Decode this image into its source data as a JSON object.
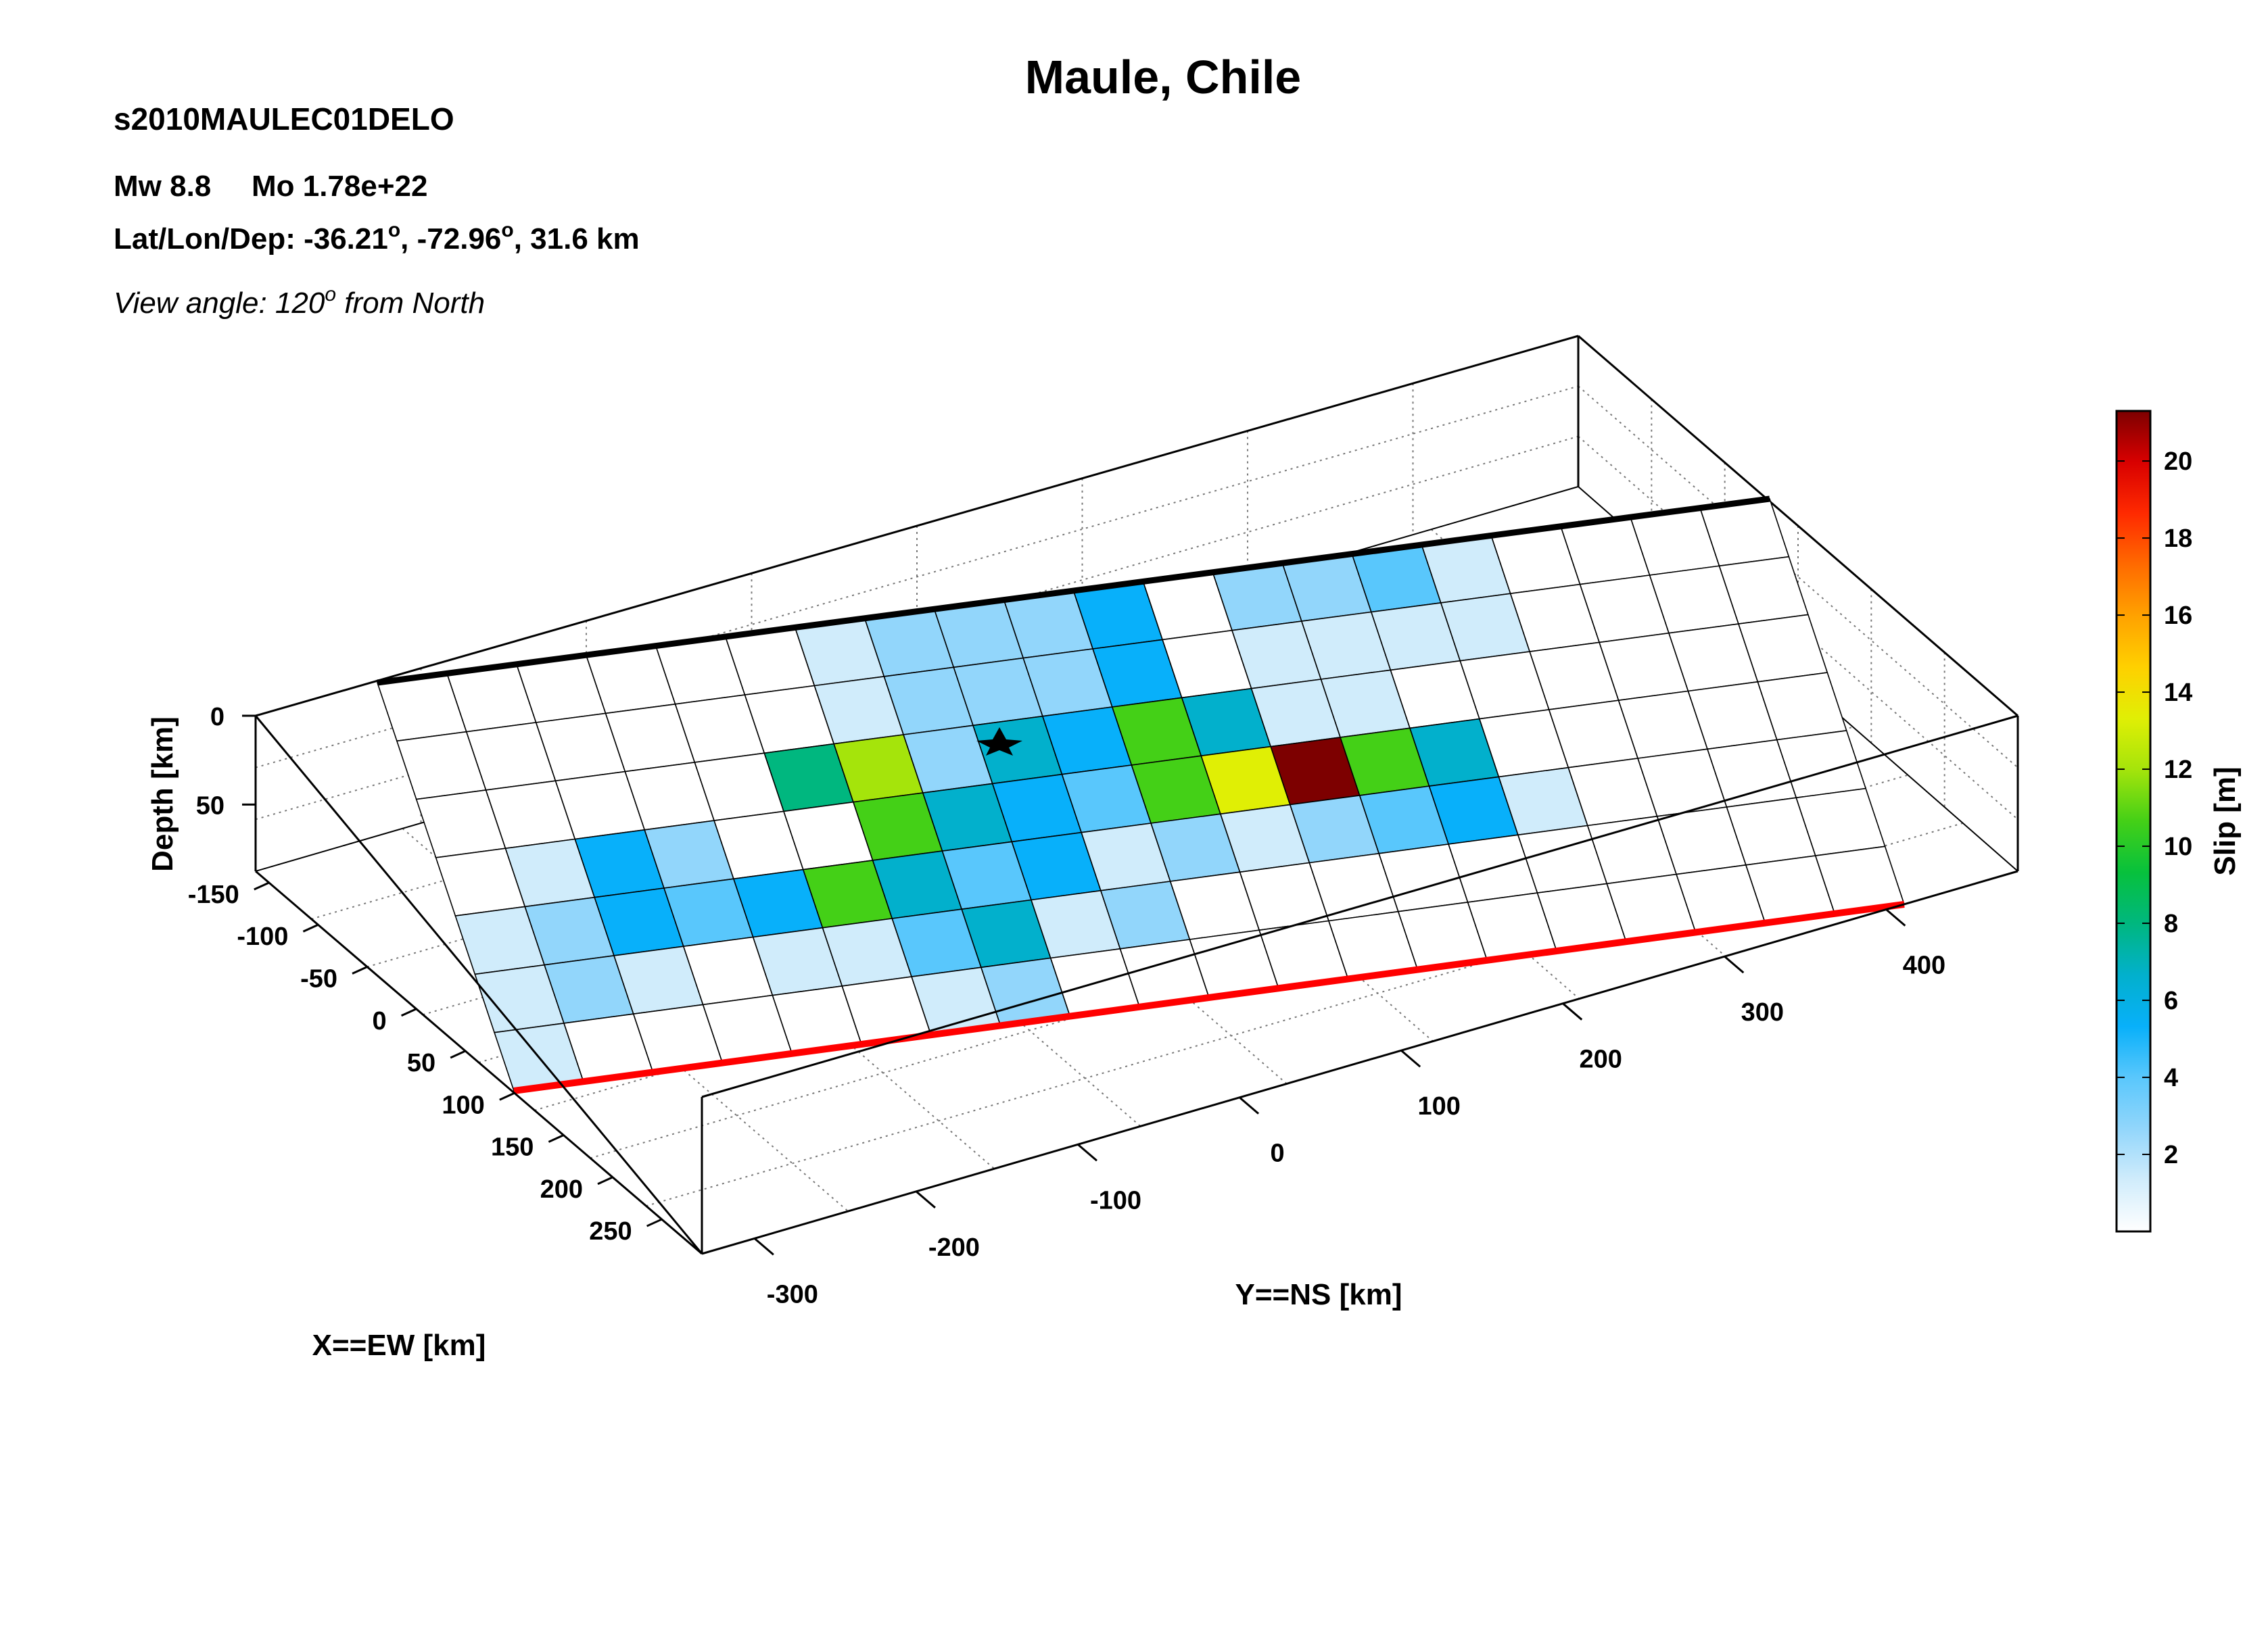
{
  "header": {
    "title": "Maule, Chile",
    "event_id": "s2010MAULEC01DELO",
    "mw_label": "Mw 8.8",
    "mo_label": "Mo 1.78e+22",
    "location_label": "Lat/Lon/Dep: -36.21",
    "location_lon": ", -72.96",
    "location_dep": ", 31.6 km",
    "degree_mark": "o",
    "view_prefix": "View angle: 120",
    "view_suffix": " from North"
  },
  "chart_data": {
    "type": "heatmap",
    "title": "Maule, Chile",
    "xlabel": "X==EW [km]",
    "ylabel": "Y==NS [km]",
    "zlabel": "Depth [km]",
    "colorbar_label": "Slip [m]",
    "colorbar_ticks": [
      "2",
      "4",
      "6",
      "8",
      "10",
      "12",
      "14",
      "16",
      "18",
      "20"
    ],
    "colorbar_range": [
      0,
      21.3
    ],
    "x_ticks": [
      "-150",
      "-100",
      "-50",
      "0",
      "50",
      "100",
      "150",
      "200",
      "250"
    ],
    "y_ticks": [
      "-300",
      "-200",
      "-100",
      "0",
      "100",
      "200",
      "300",
      "400"
    ],
    "z_ticks": [
      "0",
      "50"
    ],
    "grid": "dotted",
    "view_angle_deg": 120,
    "hypocenter": {
      "x_km": 0,
      "y_km": -150,
      "depth_km": 31.6
    },
    "fault_rows": 7,
    "fault_cols": 20,
    "slip_m": [
      [
        0.0,
        0.0,
        0.0,
        0.0,
        0.0,
        0.0,
        1.0,
        3.0,
        2.5,
        2.2,
        5.0,
        0.0,
        2.2,
        3.0,
        4.2,
        1.8,
        0.0,
        0.0,
        0.0,
        0.0
      ],
      [
        0.0,
        0.0,
        0.0,
        0.0,
        0.0,
        0.0,
        1.0,
        2.8,
        2.5,
        2.0,
        5.0,
        0.0,
        1.5,
        1.0,
        1.5,
        1.8,
        0.0,
        0.0,
        0.0,
        0.0
      ],
      [
        0.0,
        0.0,
        0.0,
        0.0,
        0.0,
        8.0,
        12.5,
        3.0,
        7.0,
        5.0,
        10.5,
        6.5,
        1.0,
        0.5,
        0.0,
        0.0,
        0.0,
        0.0,
        0.0,
        0.0
      ],
      [
        0.0,
        1.5,
        5.5,
        3.0,
        0.0,
        0.0,
        10.0,
        6.0,
        5.0,
        4.5,
        10.0,
        13.5,
        21.3,
        10.5,
        6.5,
        0.0,
        0.0,
        0.0,
        0.0,
        0.0
      ],
      [
        0.8,
        2.5,
        5.0,
        3.5,
        5.5,
        10.0,
        6.0,
        3.5,
        5.5,
        1.0,
        3.0,
        0.5,
        3.0,
        4.0,
        5.5,
        1.8,
        0.0,
        0.0,
        0.0,
        0.0
      ],
      [
        0.5,
        2.8,
        1.0,
        0.0,
        0.5,
        1.0,
        3.5,
        6.0,
        1.0,
        2.5,
        0.0,
        0.0,
        0.0,
        0.0,
        0.0,
        0.0,
        0.0,
        0.0,
        0.0,
        0.0
      ],
      [
        0.5,
        0.0,
        0.0,
        0.0,
        0.0,
        0.0,
        1.0,
        2.5,
        0.0,
        0.0,
        0.0,
        0.0,
        0.0,
        0.0,
        0.0,
        0.0,
        0.0,
        0.0,
        0.0,
        0.0
      ]
    ],
    "colors": {
      "top_edge": "#000000",
      "bottom_edge": "#ff0000",
      "colormap": [
        "#ffffff",
        "#d0ecfb",
        "#92d6fb",
        "#59c7fc",
        "#08b0fa",
        "#02b0cc",
        "#00b77f",
        "#07c13c",
        "#44d017",
        "#a5e40b",
        "#e0ef05",
        "#ffd000",
        "#ffa200",
        "#ff6a00",
        "#ff2a00",
        "#d80000",
        "#7d0000"
      ]
    }
  }
}
